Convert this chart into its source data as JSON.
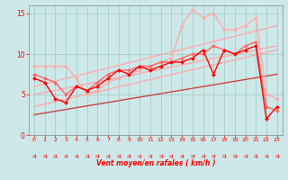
{
  "xlabel": "Vent moyen/en rafales ( km/h )",
  "xlim": [
    -0.5,
    23.5
  ],
  "ylim": [
    0,
    16
  ],
  "yticks": [
    0,
    5,
    10,
    15
  ],
  "xticks": [
    0,
    1,
    2,
    3,
    4,
    5,
    6,
    7,
    8,
    9,
    10,
    11,
    12,
    13,
    14,
    15,
    16,
    17,
    18,
    19,
    20,
    21,
    22,
    23
  ],
  "background_color": "#cce8e8",
  "grid_color": "#aacccc",
  "trend1_x": [
    0,
    23
  ],
  "trend1_y": [
    6.0,
    13.5
  ],
  "trend1_color": "#ffaaaa",
  "trend1_lw": 1.0,
  "trend2_x": [
    0,
    23
  ],
  "trend2_y": [
    5.0,
    11.0
  ],
  "trend2_color": "#ffaaaa",
  "trend2_lw": 1.0,
  "trend3_x": [
    0,
    23
  ],
  "trend3_y": [
    3.5,
    10.5
  ],
  "trend3_color": "#ffaaaa",
  "trend3_lw": 1.0,
  "trend4_x": [
    0,
    23
  ],
  "trend4_y": [
    2.5,
    7.5
  ],
  "trend4_color": "#cc4444",
  "trend4_lw": 1.0,
  "line_pink_x": [
    0,
    1,
    2,
    3,
    4,
    5,
    6,
    7,
    8,
    9,
    10,
    11,
    12,
    13,
    14,
    15,
    16,
    17,
    18,
    19,
    20,
    21,
    22,
    23
  ],
  "line_pink_y": [
    8.5,
    8.5,
    8.5,
    8.5,
    7.0,
    5.0,
    5.5,
    6.5,
    7.0,
    7.5,
    8.0,
    8.5,
    9.0,
    9.5,
    13.5,
    15.5,
    14.5,
    15.0,
    13.0,
    13.0,
    13.5,
    14.5,
    5.0,
    4.5
  ],
  "line_pink_color": "#ffaaaa",
  "line_pink_lw": 1.0,
  "line_pink_ms": 2.0,
  "line_med_x": [
    0,
    1,
    2,
    3,
    4,
    5,
    6,
    7,
    8,
    9,
    10,
    11,
    12,
    13,
    14,
    15,
    16,
    17,
    18,
    19,
    20,
    21,
    22,
    23
  ],
  "line_med_y": [
    7.5,
    7.0,
    6.5,
    5.0,
    6.0,
    5.5,
    6.5,
    7.5,
    8.0,
    8.0,
    8.5,
    8.5,
    9.0,
    9.0,
    9.5,
    10.0,
    10.0,
    11.0,
    10.5,
    10.0,
    11.0,
    11.5,
    3.5,
    3.0
  ],
  "line_med_color": "#ff6666",
  "line_med_lw": 1.0,
  "line_med_ms": 2.0,
  "line_dark_x": [
    0,
    1,
    2,
    3,
    4,
    5,
    6,
    7,
    8,
    9,
    10,
    11,
    12,
    13,
    14,
    15,
    16,
    17,
    18,
    19,
    20,
    21,
    22,
    23
  ],
  "line_dark_y": [
    7.0,
    6.5,
    4.5,
    4.0,
    6.0,
    5.5,
    6.0,
    7.0,
    8.0,
    7.5,
    8.5,
    8.0,
    8.5,
    9.0,
    9.0,
    9.5,
    10.5,
    7.5,
    10.5,
    10.0,
    10.5,
    11.0,
    2.0,
    3.5
  ],
  "line_dark_color": "#ff0000",
  "line_dark_lw": 1.0,
  "line_dark_ms": 2.0
}
